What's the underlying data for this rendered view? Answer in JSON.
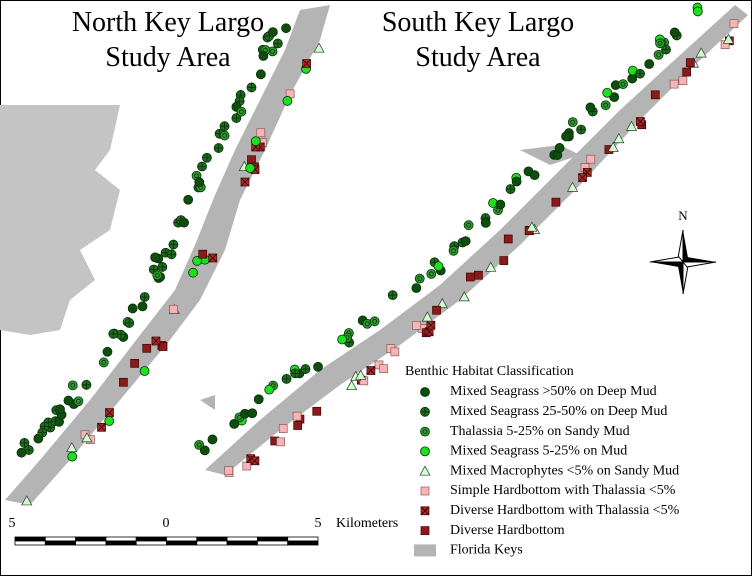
{
  "north_title": {
    "lines": [
      "North Key Largo",
      "Study Area"
    ]
  },
  "south_title": {
    "lines": [
      "South Key Largo",
      "Study Area"
    ]
  },
  "north_arrow": {
    "label": "N"
  },
  "legend": {
    "title": "Benthic Habitat Classification",
    "items": [
      "Mixed Seagrass >50% on Deep Mud",
      "Mixed Seagrass 25-50% on Deep Mud",
      "Thalassia  5-25% on Sandy Mud",
      "Mixed Seagrass 5-25% on Mud",
      "Mixed Macrophytes <5% on Sandy Mud",
      "Simple Hardbottom with Thalassia <5%",
      "Diverse Hardbottom  with Thalassia <5%",
      "Diverse Hardbottom",
      "Florida Keys"
    ]
  },
  "scale_bar": {
    "labels": [
      5,
      0,
      5
    ],
    "unit": "Kilometers"
  }
}
